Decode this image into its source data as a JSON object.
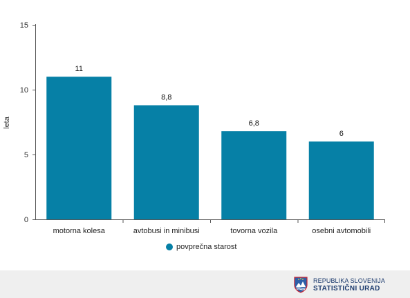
{
  "chart_data": {
    "type": "bar",
    "categories": [
      "motorna kolesa",
      "avtobusi in minibusi",
      "tovorna vozila",
      "osebni avtomobili"
    ],
    "series": [
      {
        "name": "povprečna starost",
        "values": [
          11,
          8.8,
          6.8,
          6
        ],
        "labels": [
          "11",
          "8,8",
          "6,8",
          "6"
        ]
      }
    ],
    "ylabel": "leta",
    "xlabel": "",
    "ylim": [
      0,
      15
    ],
    "yticks": [
      0,
      5,
      10,
      15
    ],
    "grid": false,
    "legend": "bottom-center",
    "bar_color": "#0680a6"
  },
  "footer": {
    "logo_line1": "REPUBLIKA SLOVENIJA",
    "logo_line2": "STATISTIČNI URAD",
    "logo_icon": "slovenia-coat-of-arms-icon"
  }
}
